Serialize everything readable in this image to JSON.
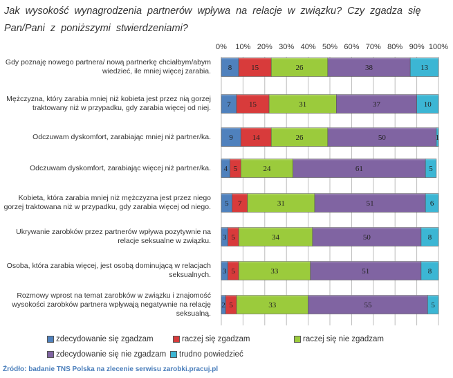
{
  "chart_data": {
    "type": "bar",
    "orientation": "horizontal-stacked-100",
    "title": "Jak wysokość wynagrodzenia partnerów wpływa na relacje w związku? Czy zgadza się Pan/Pani z poniższymi stwierdzeniami?",
    "xticks": [
      "0%",
      "10%",
      "20%",
      "30%",
      "40%",
      "50%",
      "60%",
      "70%",
      "80%",
      "90%",
      "100%"
    ],
    "xlim": [
      0,
      100
    ],
    "grid": true,
    "legend_position": "bottom",
    "categories": [
      "Gdy poznaję nowego partnera/ nową partnerkę chciałbym/abym wiedzieć, ile mniej więcej zarabia.",
      "Mężczyzna, który zarabia mniej niż kobieta jest przez nią gorzej traktowany niż w przypadku, gdy zarabia więcej od niej.",
      "Odczuwam dyskomfort, zarabiając mniej niż partner/ka.",
      "Odczuwam dyskomfort, zarabiając więcej niż partner/ka.",
      "Kobieta, która zarabia mniej niż mężczyzna jest przez niego gorzej traktowana niż w przypadku, gdy zarabia więcej od niego.",
      "Ukrywanie zarobków przez partnerów wpływa pozytywnie na relacje seksualne w związku.",
      "Osoba, która zarabia więcej, jest osobą dominującą w relacjach seksualnych.",
      "Rozmowy wprost na temat zarobków w związku i znajomość wysokości zarobków partnera wpływają negatywnie na relację seksualną."
    ],
    "series": [
      {
        "name": "zdecydowanie się zgadzam",
        "color": "#4f81bd",
        "values": [
          8,
          7,
          9,
          4,
          5,
          3,
          3,
          2
        ]
      },
      {
        "name": "raczej się zgadzam",
        "color": "#d83b3b",
        "values": [
          15,
          15,
          14,
          5,
          7,
          5,
          5,
          5
        ]
      },
      {
        "name": "raczej się nie zgadzam",
        "color": "#9bcb3c",
        "values": [
          26,
          31,
          26,
          24,
          31,
          34,
          33,
          33
        ]
      },
      {
        "name": "zdecydowanie się nie zgadzam",
        "color": "#8064a2",
        "values": [
          38,
          37,
          50,
          61,
          51,
          50,
          51,
          55
        ]
      },
      {
        "name": "trudno powiedzieć",
        "color": "#3cb6d4",
        "values": [
          13,
          10,
          1,
          5,
          6,
          8,
          8,
          5
        ]
      }
    ]
  },
  "source": "Źródło: badanie TNS Polska na zlecenie serwisu zarobki.pracuj.pl"
}
